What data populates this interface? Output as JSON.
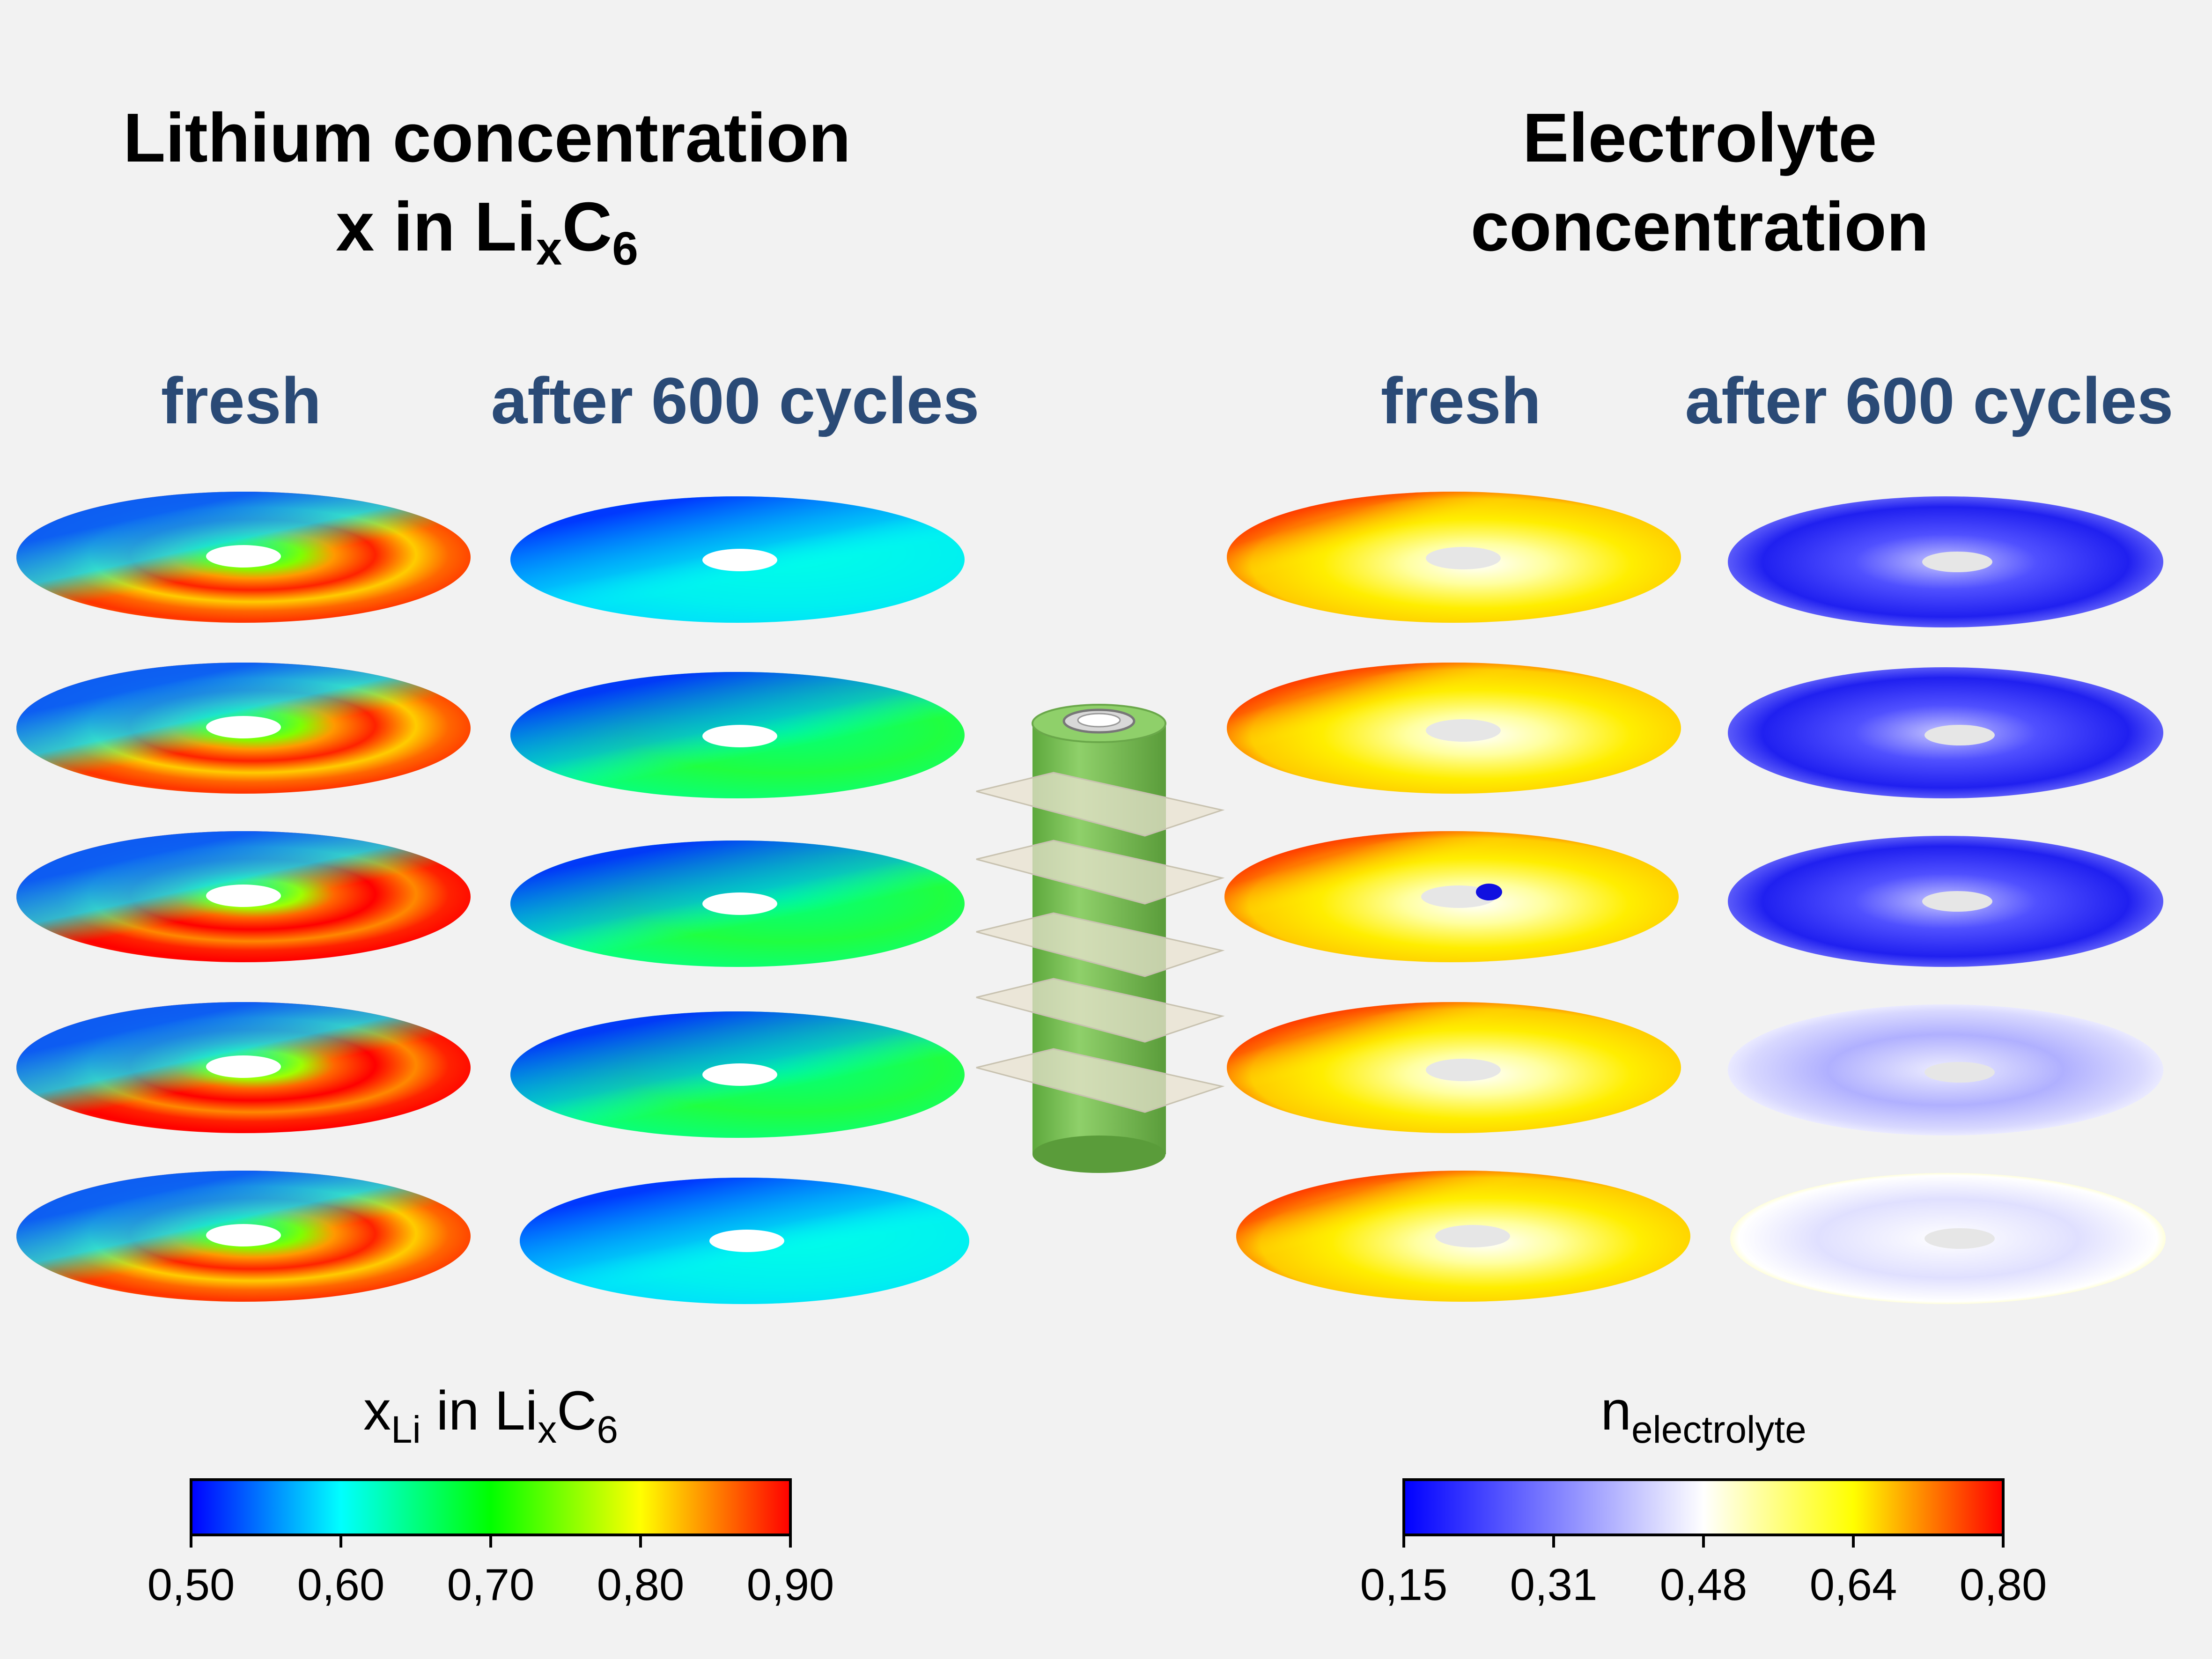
{
  "titles": {
    "left_line1": "Lithium concentration",
    "left_line2_prefix": "x in Li",
    "left_line2_sub": "x",
    "left_line2_mid": "C",
    "left_line2_sub2": "6",
    "right_line1": "Electrolyte",
    "right_line2": "concentration"
  },
  "columns": {
    "left_fresh": "fresh",
    "left_aged": "after 600 cycles",
    "right_fresh": "fresh",
    "right_aged": "after 600 cycles"
  },
  "colorbars": {
    "lithium": {
      "label_main": "x",
      "label_sub": "Li",
      "label_mid": " in Li",
      "label_sub2": "x",
      "label_end": "C",
      "label_sub3": "6",
      "ticks": [
        "0,50",
        "0,60",
        "0,70",
        "0,80",
        "0,90"
      ],
      "colors": [
        "#0000ff",
        "#00ffff",
        "#00ff00",
        "#ffff00",
        "#ff0000"
      ]
    },
    "electrolyte": {
      "label_main": "n",
      "label_sub": "electrolyte",
      "ticks": [
        "0,15",
        "0,31",
        "0,48",
        "0,64",
        "0,80"
      ],
      "colors": [
        "#0000ff",
        "#ffffff",
        "#ffff00",
        "#ff0000"
      ]
    }
  },
  "slices": {
    "count": 5,
    "lithium_fresh": [
      "red-orange",
      "red-orange",
      "red",
      "red",
      "red-orange"
    ],
    "lithium_aged": [
      "cyan",
      "green",
      "green",
      "green",
      "cyan"
    ],
    "electrolyte_fresh": [
      "yellow",
      "yellow",
      "yellow",
      "yellow",
      "yellow"
    ],
    "electrolyte_aged": [
      "blue",
      "blue",
      "blue",
      "light-blue",
      "white"
    ]
  },
  "colors": {
    "title_blue": "#2a4a76",
    "cell_green": "#7cc35a",
    "plane": "#e8e2cf"
  }
}
